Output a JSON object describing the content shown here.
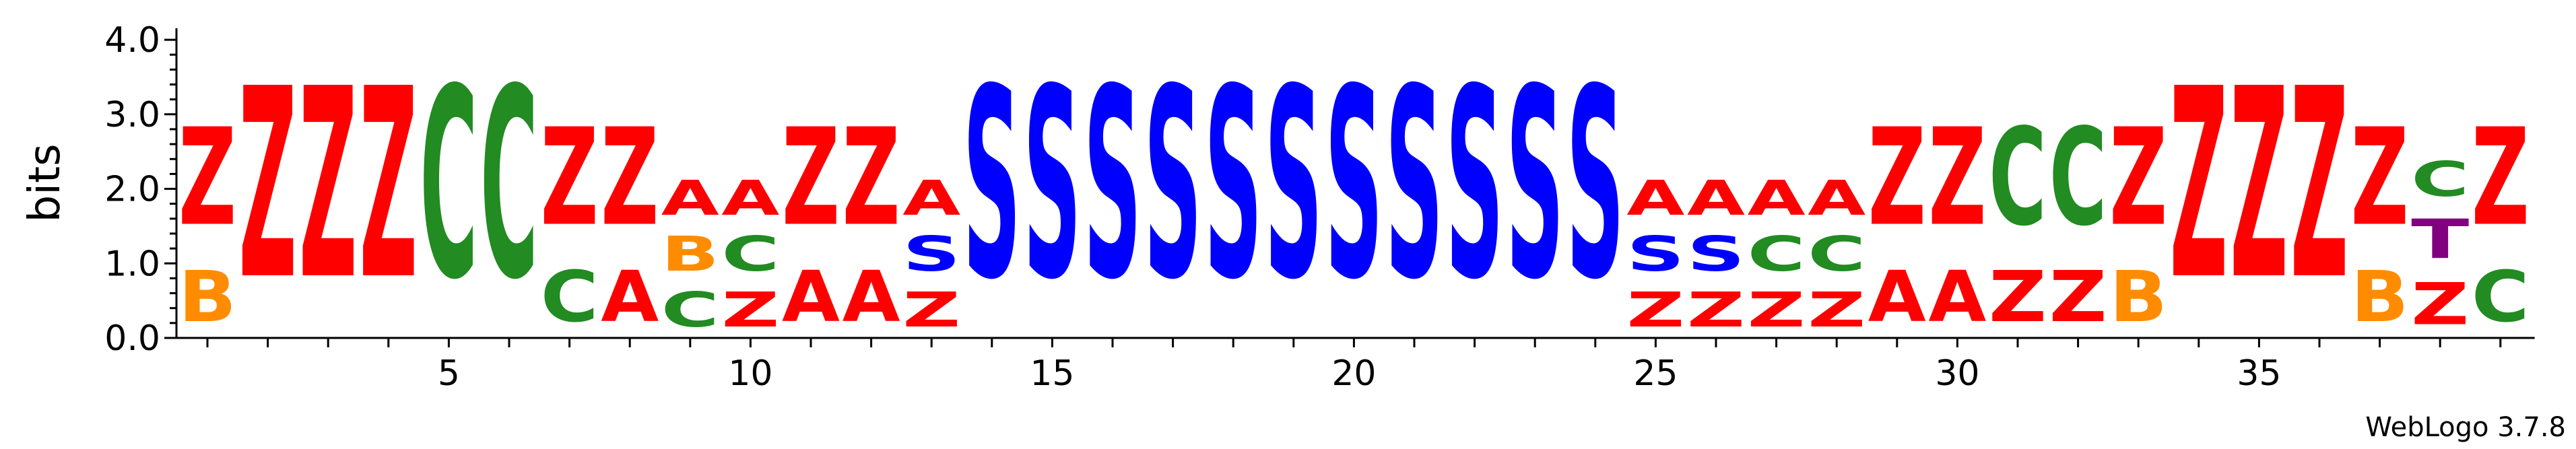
{
  "chart_data": {
    "type": "sequence-logo",
    "ylabel": "bits",
    "ylim": [
      0,
      4.1
    ],
    "yticks": [
      "0.0",
      "1.0",
      "2.0",
      "3.0",
      "4.0"
    ],
    "xticks": [
      5,
      10,
      15,
      20,
      25,
      30,
      35
    ],
    "positions": [
      {
        "pos": 1,
        "stack": [
          {
            "letter": "B",
            "bits": 1.1
          },
          {
            "letter": "Z",
            "bits": 2.1
          }
        ]
      },
      {
        "pos": 2,
        "stack": [
          {
            "letter": "Z",
            "bits": 4.1
          }
        ]
      },
      {
        "pos": 3,
        "stack": [
          {
            "letter": "Z",
            "bits": 4.1
          }
        ]
      },
      {
        "pos": 4,
        "stack": [
          {
            "letter": "Z",
            "bits": 4.1
          }
        ]
      },
      {
        "pos": 5,
        "stack": [
          {
            "letter": "C",
            "bits": 4.1
          }
        ]
      },
      {
        "pos": 6,
        "stack": [
          {
            "letter": "C",
            "bits": 4.1
          }
        ]
      },
      {
        "pos": 7,
        "stack": [
          {
            "letter": "C",
            "bits": 1.1
          },
          {
            "letter": "Z",
            "bits": 2.1
          }
        ]
      },
      {
        "pos": 8,
        "stack": [
          {
            "letter": "A",
            "bits": 1.1
          },
          {
            "letter": "Z",
            "bits": 2.1
          }
        ]
      },
      {
        "pos": 9,
        "stack": [
          {
            "letter": "C",
            "bits": 0.75
          },
          {
            "letter": "B",
            "bits": 0.75
          },
          {
            "letter": "A",
            "bits": 0.75
          }
        ]
      },
      {
        "pos": 10,
        "stack": [
          {
            "letter": "Z",
            "bits": 0.75
          },
          {
            "letter": "C",
            "bits": 0.75
          },
          {
            "letter": "A",
            "bits": 0.75
          }
        ]
      },
      {
        "pos": 11,
        "stack": [
          {
            "letter": "A",
            "bits": 1.1
          },
          {
            "letter": "Z",
            "bits": 2.1
          }
        ]
      },
      {
        "pos": 12,
        "stack": [
          {
            "letter": "A",
            "bits": 1.1
          },
          {
            "letter": "Z",
            "bits": 2.1
          }
        ]
      },
      {
        "pos": 13,
        "stack": [
          {
            "letter": "Z",
            "bits": 0.75
          },
          {
            "letter": "S",
            "bits": 0.75
          },
          {
            "letter": "A",
            "bits": 0.75
          }
        ]
      },
      {
        "pos": 14,
        "stack": [
          {
            "letter": "S",
            "bits": 4.1
          }
        ]
      },
      {
        "pos": 15,
        "stack": [
          {
            "letter": "S",
            "bits": 4.1
          }
        ]
      },
      {
        "pos": 16,
        "stack": [
          {
            "letter": "S",
            "bits": 4.1
          }
        ]
      },
      {
        "pos": 17,
        "stack": [
          {
            "letter": "S",
            "bits": 4.1
          }
        ]
      },
      {
        "pos": 18,
        "stack": [
          {
            "letter": "S",
            "bits": 4.1
          }
        ]
      },
      {
        "pos": 19,
        "stack": [
          {
            "letter": "S",
            "bits": 4.1
          }
        ]
      },
      {
        "pos": 20,
        "stack": [
          {
            "letter": "S",
            "bits": 4.1
          }
        ]
      },
      {
        "pos": 21,
        "stack": [
          {
            "letter": "S",
            "bits": 4.1
          }
        ]
      },
      {
        "pos": 22,
        "stack": [
          {
            "letter": "S",
            "bits": 4.1
          }
        ]
      },
      {
        "pos": 23,
        "stack": [
          {
            "letter": "S",
            "bits": 4.1
          }
        ]
      },
      {
        "pos": 24,
        "stack": [
          {
            "letter": "S",
            "bits": 4.1
          }
        ]
      },
      {
        "pos": 25,
        "stack": [
          {
            "letter": "Z",
            "bits": 0.75
          },
          {
            "letter": "S",
            "bits": 0.75
          },
          {
            "letter": "A",
            "bits": 0.75
          }
        ]
      },
      {
        "pos": 26,
        "stack": [
          {
            "letter": "Z",
            "bits": 0.75
          },
          {
            "letter": "S",
            "bits": 0.75
          },
          {
            "letter": "A",
            "bits": 0.75
          }
        ]
      },
      {
        "pos": 27,
        "stack": [
          {
            "letter": "Z",
            "bits": 0.75
          },
          {
            "letter": "C",
            "bits": 0.75
          },
          {
            "letter": "A",
            "bits": 0.75
          }
        ]
      },
      {
        "pos": 28,
        "stack": [
          {
            "letter": "Z",
            "bits": 0.75
          },
          {
            "letter": "C",
            "bits": 0.75
          },
          {
            "letter": "A",
            "bits": 0.75
          }
        ]
      },
      {
        "pos": 29,
        "stack": [
          {
            "letter": "A",
            "bits": 1.1
          },
          {
            "letter": "Z",
            "bits": 2.1
          }
        ]
      },
      {
        "pos": 30,
        "stack": [
          {
            "letter": "A",
            "bits": 1.1
          },
          {
            "letter": "Z",
            "bits": 2.1
          }
        ]
      },
      {
        "pos": 31,
        "stack": [
          {
            "letter": "Z",
            "bits": 1.1
          },
          {
            "letter": "C",
            "bits": 2.1
          }
        ]
      },
      {
        "pos": 32,
        "stack": [
          {
            "letter": "Z",
            "bits": 1.1
          },
          {
            "letter": "C",
            "bits": 2.1
          }
        ]
      },
      {
        "pos": 33,
        "stack": [
          {
            "letter": "B",
            "bits": 1.1
          },
          {
            "letter": "Z",
            "bits": 2.1
          }
        ]
      },
      {
        "pos": 34,
        "stack": [
          {
            "letter": "Z",
            "bits": 4.1
          }
        ]
      },
      {
        "pos": 35,
        "stack": [
          {
            "letter": "Z",
            "bits": 4.1
          }
        ]
      },
      {
        "pos": 36,
        "stack": [
          {
            "letter": "Z",
            "bits": 4.1
          }
        ]
      },
      {
        "pos": 37,
        "stack": [
          {
            "letter": "B",
            "bits": 1.1
          },
          {
            "letter": "Z",
            "bits": 2.1
          }
        ]
      },
      {
        "pos": 38,
        "stack": [
          {
            "letter": "Z",
            "bits": 0.9
          },
          {
            "letter": "T",
            "bits": 0.85
          },
          {
            "letter": "C",
            "bits": 0.75
          }
        ]
      },
      {
        "pos": 39,
        "stack": [
          {
            "letter": "C",
            "bits": 1.1
          },
          {
            "letter": "Z",
            "bits": 2.1
          }
        ]
      }
    ]
  },
  "colors": {
    "Z": "#FF0000",
    "A": "#FF0000",
    "B": "#FF8C00",
    "C": "#228B22",
    "S": "#0000FF",
    "T": "#800080"
  },
  "credit": "WebLogo 3.7.8"
}
